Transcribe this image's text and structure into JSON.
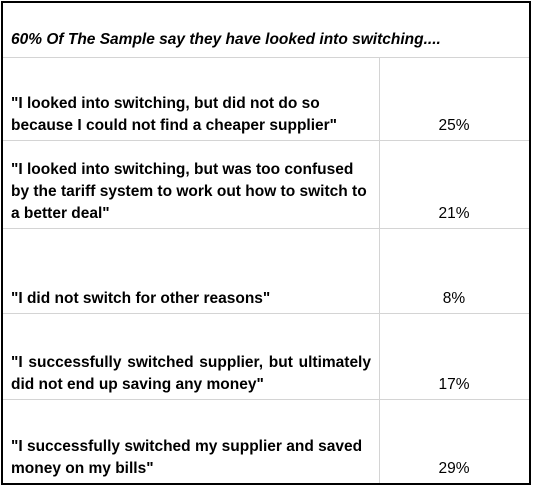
{
  "title": "60% Of The Sample say they have looked into switching....",
  "chart_data": {
    "type": "table",
    "title": "60% Of The Sample say they have looked into switching....",
    "rows": [
      {
        "label": "\"I looked into switching, but did not do so because I could not find a cheaper supplier\"",
        "value": "25%"
      },
      {
        "label": "\"I looked into switching, but was too confused by the tariff system to work out how to switch to a better deal\"",
        "value": "21%"
      },
      {
        "label": "\"I did not switch for other reasons\"",
        "value": "8%"
      },
      {
        "label": "\"I successfully switched supplier, but ultimately did not end up saving any money\"",
        "value": "17%"
      },
      {
        "label": "\"I successfully switched my supplier and saved money on my bills\"",
        "value": "29%"
      }
    ]
  }
}
